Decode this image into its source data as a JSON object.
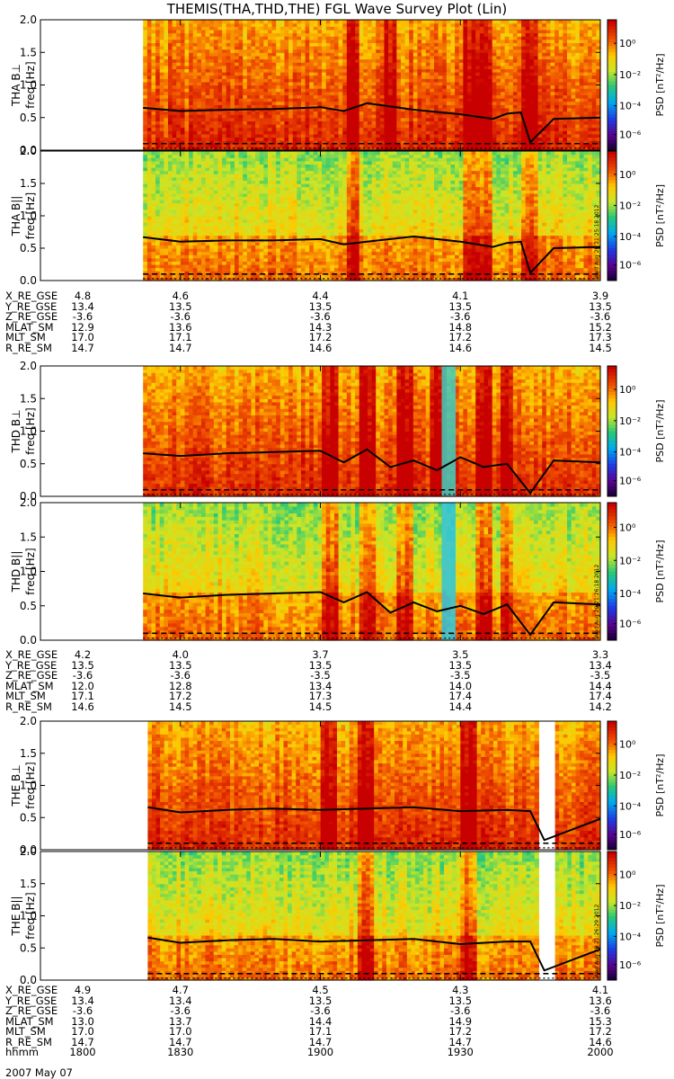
{
  "title": "THEMIS(THA,THD,THE) FGL Wave Survey Plot (Lin)",
  "date_label": "2007 May 07",
  "colorbar": {
    "label": "PSD [nT²/Hz]",
    "ticks": [
      "10⁰",
      "10⁻²",
      "10⁻⁴",
      "10⁻⁶"
    ]
  },
  "freq_axis_label": "freq [Hz]",
  "freq_ticks": [
    "2.0",
    "1.5",
    "1.0",
    "0.5",
    "0.0"
  ],
  "timestamps": [
    "Wed Aug 29 21:25:18 2012",
    "Wed Aug 29 21:26:18 2012",
    "Wed Aug 29 21:26:29 2012"
  ],
  "panels": [
    {
      "probe_label": "THA B⊥"
    },
    {
      "probe_label": "THA B||"
    },
    {
      "probe_label": "THD B⊥"
    },
    {
      "probe_label": "THD B||"
    },
    {
      "probe_label": "THE B⊥"
    },
    {
      "probe_label": "THE B||"
    }
  ],
  "ephemeris": [
    {
      "rows": [
        {
          "label": "X_RE_GSE",
          "values": [
            "4.8",
            "4.6",
            "4.4",
            "4.1",
            "3.9"
          ]
        },
        {
          "label": "Y_RE_GSE",
          "values": [
            "13.4",
            "13.5",
            "13.5",
            "13.5",
            "13.5"
          ]
        },
        {
          "label": "Z_RE_GSE",
          "values": [
            "-3.6",
            "-3.6",
            "-3.6",
            "-3.6",
            "-3.6"
          ]
        },
        {
          "label": "MLAT_SM",
          "values": [
            "12.9",
            "13.6",
            "14.3",
            "14.8",
            "15.2"
          ]
        },
        {
          "label": "MLT_SM",
          "values": [
            "17.0",
            "17.1",
            "17.2",
            "17.2",
            "17.3"
          ]
        },
        {
          "label": "R_RE_SM",
          "values": [
            "14.7",
            "14.7",
            "14.6",
            "14.6",
            "14.5"
          ]
        }
      ]
    },
    {
      "rows": [
        {
          "label": "X_RE_GSE",
          "values": [
            "4.2",
            "4.0",
            "3.7",
            "3.5",
            "3.3"
          ]
        },
        {
          "label": "Y_RE_GSE",
          "values": [
            "13.5",
            "13.5",
            "13.5",
            "13.5",
            "13.4"
          ]
        },
        {
          "label": "Z_RE_GSE",
          "values": [
            "-3.6",
            "-3.6",
            "-3.5",
            "-3.5",
            "-3.5"
          ]
        },
        {
          "label": "MLAT_SM",
          "values": [
            "12.0",
            "12.8",
            "13.4",
            "14.0",
            "14.4"
          ]
        },
        {
          "label": "MLT_SM",
          "values": [
            "17.1",
            "17.2",
            "17.3",
            "17.4",
            "17.4"
          ]
        },
        {
          "label": "R_RE_SM",
          "values": [
            "14.6",
            "14.5",
            "14.5",
            "14.4",
            "14.2"
          ]
        }
      ]
    },
    {
      "rows": [
        {
          "label": "X_RE_GSE",
          "values": [
            "4.9",
            "4.7",
            "4.5",
            "4.3",
            "4.1"
          ]
        },
        {
          "label": "Y_RE_GSE",
          "values": [
            "13.4",
            "13.4",
            "13.5",
            "13.5",
            "13.6"
          ]
        },
        {
          "label": "Z_RE_GSE",
          "values": [
            "-3.6",
            "-3.6",
            "-3.6",
            "-3.6",
            "-3.6"
          ]
        },
        {
          "label": "MLAT_SM",
          "values": [
            "13.0",
            "13.7",
            "14.4",
            "14.9",
            "15.3"
          ]
        },
        {
          "label": "MLT_SM",
          "values": [
            "17.0",
            "17.0",
            "17.1",
            "17.2",
            "17.2"
          ]
        },
        {
          "label": "R_RE_SM",
          "values": [
            "14.7",
            "14.7",
            "14.7",
            "14.7",
            "14.6"
          ]
        },
        {
          "label": "hhmm",
          "values": [
            "1800",
            "1830",
            "1900",
            "1930",
            "2000"
          ]
        }
      ]
    }
  ],
  "chart_data": {
    "type": "heatmap",
    "title": "THEMIS(THA,THD,THE) FGL Wave Survey Plot (Lin)",
    "xlabel": "hhmm",
    "x_ticks": [
      "1800",
      "1830",
      "1900",
      "1930",
      "2000"
    ],
    "xlim": [
      "1800",
      "2000"
    ],
    "ylabel": "freq [Hz]",
    "ylim": [
      0.0,
      2.0
    ],
    "y_ticks": [
      0.0,
      0.5,
      1.0,
      1.5,
      2.0
    ],
    "color_scale": "log",
    "color_range": [
      1e-07,
      10
    ],
    "colorbar_ticks": [
      "10⁰",
      "10⁻²",
      "10⁻⁴",
      "10⁻⁶"
    ],
    "overlay_lines": "solid line ~0.6 Hz, dashed line ~0.1 Hz",
    "series": [
      {
        "name": "THA B⊥",
        "data_start": "1822",
        "data_end": "2000",
        "line_time": [
          "1822",
          "1830",
          "1840",
          "1850",
          "1900",
          "1905",
          "1910",
          "1920",
          "1930",
          "1937",
          "1940",
          "1943",
          "1945",
          "1950",
          "2000"
        ],
        "line_freq": [
          0.65,
          0.6,
          0.62,
          0.63,
          0.66,
          0.6,
          0.72,
          0.62,
          0.55,
          0.48,
          0.56,
          0.58,
          0.12,
          0.48,
          0.5
        ],
        "intense_bands": [
          "1907",
          "1915",
          "1932",
          "1935",
          "1945"
        ]
      },
      {
        "name": "THA B||",
        "data_start": "1822",
        "data_end": "2000",
        "line_time": [
          "1822",
          "1830",
          "1840",
          "1850",
          "1900",
          "1905",
          "1910",
          "1920",
          "1930",
          "1937",
          "1940",
          "1943",
          "1945",
          "1950",
          "2000"
        ],
        "line_freq": [
          0.67,
          0.6,
          0.62,
          0.62,
          0.64,
          0.56,
          0.6,
          0.68,
          0.6,
          0.52,
          0.58,
          0.6,
          0.12,
          0.5,
          0.52
        ],
        "intense_bands": [
          "1907",
          "1932",
          "1935",
          "1945"
        ]
      },
      {
        "name": "THD B⊥",
        "data_start": "1822",
        "data_end": "2000",
        "line_time": [
          "1822",
          "1830",
          "1840",
          "1850",
          "1900",
          "1905",
          "1910",
          "1915",
          "1920",
          "1925",
          "1930",
          "1935",
          "1940",
          "1945",
          "1950",
          "2000"
        ],
        "line_freq": [
          0.66,
          0.62,
          0.66,
          0.68,
          0.7,
          0.52,
          0.72,
          0.45,
          0.55,
          0.4,
          0.6,
          0.45,
          0.5,
          0.05,
          0.55,
          0.52
        ],
        "intense_bands": [
          "1902",
          "1910",
          "1918",
          "1925",
          "1935",
          "1940"
        ]
      },
      {
        "name": "THD B||",
        "data_start": "1822",
        "data_end": "2000",
        "line_time": [
          "1822",
          "1830",
          "1840",
          "1850",
          "1900",
          "1905",
          "1910",
          "1915",
          "1920",
          "1925",
          "1930",
          "1935",
          "1940",
          "1945",
          "1950",
          "2000"
        ],
        "line_freq": [
          0.68,
          0.62,
          0.66,
          0.68,
          0.7,
          0.55,
          0.7,
          0.4,
          0.55,
          0.42,
          0.5,
          0.38,
          0.52,
          0.08,
          0.55,
          0.52
        ],
        "intense_bands": [
          "1902",
          "1910",
          "1918",
          "1935",
          "1940"
        ]
      },
      {
        "name": "THE B⊥",
        "data_start": "1823",
        "data_end": "2000",
        "line_time": [
          "1823",
          "1830",
          "1840",
          "1850",
          "1900",
          "1910",
          "1920",
          "1930",
          "1940",
          "1945",
          "1948",
          "2000"
        ],
        "line_freq": [
          0.66,
          0.58,
          0.62,
          0.64,
          0.62,
          0.64,
          0.66,
          0.6,
          0.62,
          0.6,
          0.15,
          0.48
        ],
        "gap": [
          "1947",
          "1950"
        ],
        "intense_bands": [
          "1902",
          "1910",
          "1932"
        ]
      },
      {
        "name": "THE B||",
        "data_start": "1823",
        "data_end": "2000",
        "line_time": [
          "1823",
          "1830",
          "1840",
          "1850",
          "1900",
          "1910",
          "1920",
          "1930",
          "1940",
          "1945",
          "1948",
          "2000"
        ],
        "line_freq": [
          0.66,
          0.58,
          0.62,
          0.64,
          0.6,
          0.62,
          0.64,
          0.56,
          0.6,
          0.6,
          0.15,
          0.48
        ],
        "gap": [
          "1947",
          "1950"
        ],
        "intense_bands": [
          "1910",
          "1932"
        ]
      }
    ]
  }
}
